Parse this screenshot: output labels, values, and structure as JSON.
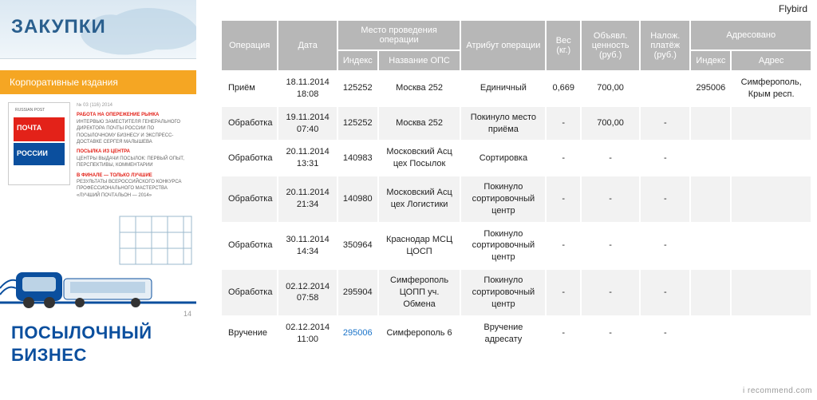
{
  "watermark": "Flybird",
  "recommend_mark": "i recommend.com",
  "sidebar": {
    "zakupki_title": "ЗАКУПКИ",
    "corp_title": "Корпоративные издания",
    "mag_issue": "№ 03 (116) 2014",
    "mag_brand": "RUSSIAN POST",
    "mag_line1": "ПОЧТА",
    "mag_line2": "РОССИИ",
    "blurb_h1": "РАБОТА НА ОПЕРЕЖЕНИЕ РЫНКА",
    "blurb_t1": "ИНТЕРВЬЮ ЗАМЕСТИТЕЛЯ ГЕНЕРАЛЬНОГО ДИРЕКТОРА ПОЧТЫ РОССИИ ПО ПОСЫЛОЧНОМУ БИЗНЕСУ И ЭКСПРЕСС-ДОСТАВКЕ СЕРГЕЯ МАЛЫШЕВА",
    "blurb_h2": "ПОСЫЛКА ИЗ ЦЕНТРА",
    "blurb_t2": "ЦЕНТРЫ ВЫДАЧИ ПОСЫЛОК: ПЕРВЫЙ ОПЫТ, ПЕРСПЕКТИВЫ, КОММЕНТАРИИ",
    "blurb_h3": "В ФИНАЛЕ — ТОЛЬКО ЛУЧШИЕ",
    "blurb_t3": "РЕЗУЛЬТАТЫ ВСЕРОССИЙСКОГО КОНКУРСА ПРОФЕССИОНАЛЬНОГО МАСТЕРСТВА «ЛУЧШИЙ ПОЧТАЛЬОН — 2014»",
    "posyl1": "ПОСЫЛОЧНЫЙ",
    "posyl2": "БИЗНЕС",
    "page_num": "14"
  },
  "table": {
    "headers": {
      "operation": "Операция",
      "date": "Дата",
      "place": "Место проведения операции",
      "index": "Индекс",
      "ops": "Название ОПС",
      "attr": "Атрибут операции",
      "weight": "Вес (кг.)",
      "value": "Объявл. ценность (руб.)",
      "cod": "Налож. платёж (руб.)",
      "addressed": "Адресовано",
      "addr_index": "Индекс",
      "addr": "Адрес"
    },
    "rows": [
      {
        "op": "Приём",
        "date": "18.11.2014 18:08",
        "idx": "125252",
        "ops": "Москва 252",
        "attr": "Единичный",
        "w": "0,669",
        "val": "700,00",
        "cod": "",
        "aidx": "295006",
        "addr": "Симферополь, Крым респ."
      },
      {
        "op": "Обработка",
        "date": "19.11.2014 07:40",
        "idx": "125252",
        "ops": "Москва 252",
        "attr": "Покинуло место приёма",
        "w": "-",
        "val": "700,00",
        "cod": "-",
        "aidx": "",
        "addr": ""
      },
      {
        "op": "Обработка",
        "date": "20.11.2014 13:31",
        "idx": "140983",
        "ops": "Московский Асц цех Посылок",
        "attr": "Сортировка",
        "w": "-",
        "val": "-",
        "cod": "-",
        "aidx": "",
        "addr": ""
      },
      {
        "op": "Обработка",
        "date": "20.11.2014 21:34",
        "idx": "140980",
        "ops": "Московский Асц цех Логистики",
        "attr": "Покинуло сортировочный центр",
        "w": "-",
        "val": "-",
        "cod": "-",
        "aidx": "",
        "addr": ""
      },
      {
        "op": "Обработка",
        "date": "30.11.2014 14:34",
        "idx": "350964",
        "ops": "Краснодар МСЦ ЦОСП",
        "attr": "Покинуло сортировочный центр",
        "w": "-",
        "val": "-",
        "cod": "-",
        "aidx": "",
        "addr": ""
      },
      {
        "op": "Обработка",
        "date": "02.12.2014 07:58",
        "idx": "295904",
        "ops": "Симферополь ЦОПП уч. Обмена",
        "attr": "Покинуло сортировочный центр",
        "w": "-",
        "val": "-",
        "cod": "-",
        "aidx": "",
        "addr": ""
      },
      {
        "op": "Вручение",
        "date": "02.12.2014 11:00",
        "idx": "295006",
        "idx_link": true,
        "ops": "Симферополь 6",
        "attr": "Вручение адресату",
        "w": "-",
        "val": "-",
        "cod": "-",
        "aidx": "",
        "addr": ""
      }
    ]
  },
  "colors": {
    "header_bg": "#b7b7b7",
    "row_alt": "#f2f2f2",
    "orange": "#f5a623",
    "blue": "#0b4f9e",
    "red": "#e32219",
    "link": "#1a73c9"
  }
}
